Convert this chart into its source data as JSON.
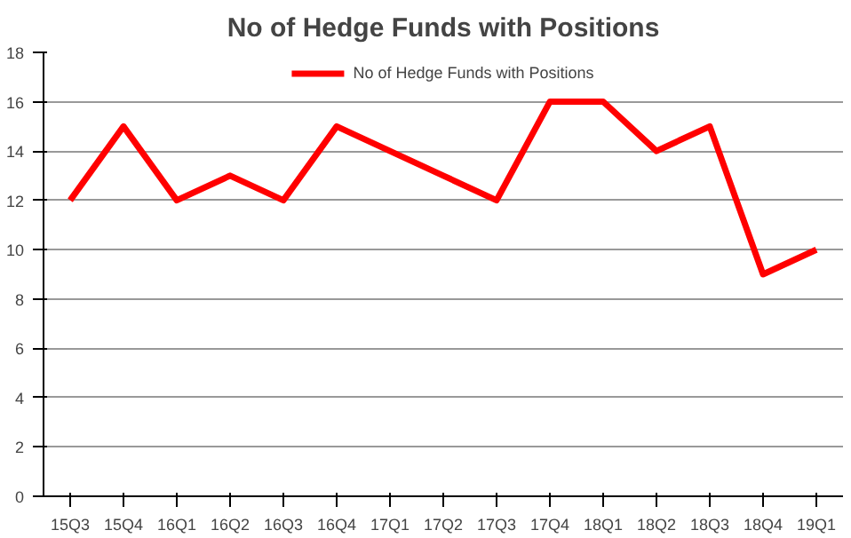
{
  "chart_data": {
    "type": "line",
    "title": "No of Hedge Funds with Positions",
    "categories": [
      "15Q3",
      "15Q4",
      "16Q1",
      "16Q2",
      "16Q3",
      "16Q4",
      "17Q1",
      "17Q2",
      "17Q3",
      "17Q4",
      "18Q1",
      "18Q2",
      "18Q3",
      "18Q4",
      "19Q1"
    ],
    "series": [
      {
        "name": "No of Hedge Funds with Positions",
        "color": "#ff0000",
        "values": [
          12,
          15,
          12,
          13,
          12,
          15,
          14,
          13,
          12,
          16,
          16,
          14,
          15,
          9,
          10
        ]
      }
    ],
    "ylim": [
      0,
      18
    ],
    "yticks": [
      0,
      2,
      4,
      6,
      8,
      10,
      12,
      14,
      16,
      18
    ],
    "grid": "y",
    "legend": "top",
    "marker": "none",
    "line_style": "solid"
  }
}
